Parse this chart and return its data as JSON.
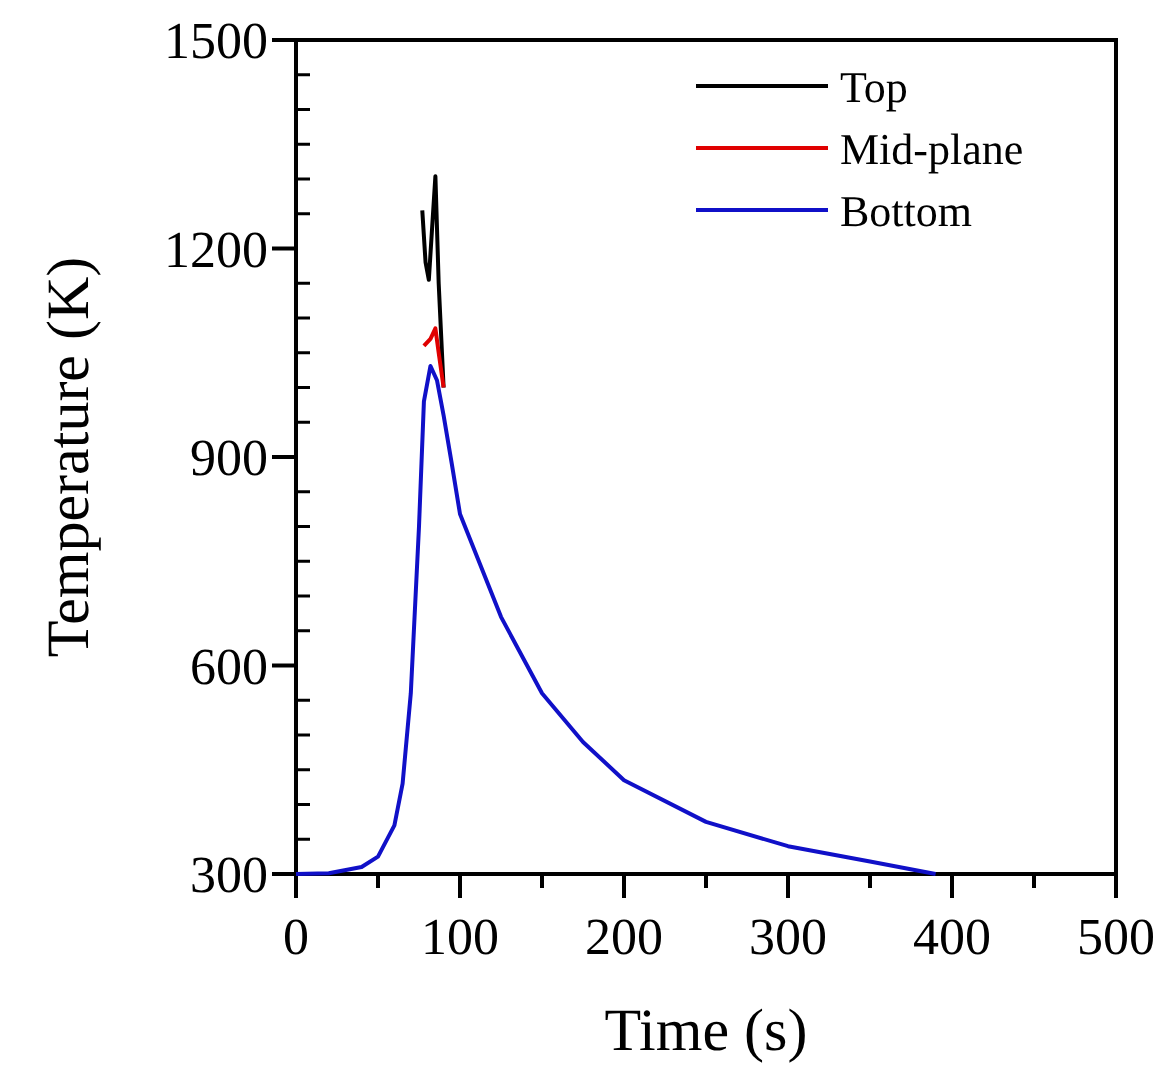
{
  "chart_data": {
    "type": "line",
    "xlabel": "Time (s)",
    "ylabel": "Temperature (K)",
    "xlim": [
      0,
      500
    ],
    "ylim": [
      300,
      1500
    ],
    "xticks": [
      0,
      100,
      200,
      300,
      400,
      500
    ],
    "yticks": [
      300,
      600,
      900,
      1200,
      1500
    ],
    "legend": "top right",
    "grid": false,
    "series": [
      {
        "name": "Top",
        "color": "#000000",
        "x": [
          77,
          79,
          81,
          83,
          85,
          87,
          90
        ],
        "values": [
          1255,
          1180,
          1155,
          1230,
          1304,
          1150,
          1000
        ]
      },
      {
        "name": "Mid-plane",
        "color": "#e00000",
        "x": [
          78,
          82,
          85,
          87,
          90
        ],
        "values": [
          1060,
          1070,
          1085,
          1050,
          1000
        ]
      },
      {
        "name": "Bottom",
        "color": "#1010c8",
        "x": [
          0,
          20,
          40,
          50,
          60,
          65,
          70,
          75,
          78,
          82,
          86,
          90,
          95,
          100,
          125,
          150,
          175,
          200,
          250,
          300,
          350,
          390
        ],
        "values": [
          300,
          301,
          310,
          325,
          370,
          430,
          560,
          800,
          980,
          1031,
          1010,
          960,
          890,
          818,
          670,
          560,
          490,
          435,
          375,
          340,
          318,
          300
        ]
      }
    ]
  }
}
